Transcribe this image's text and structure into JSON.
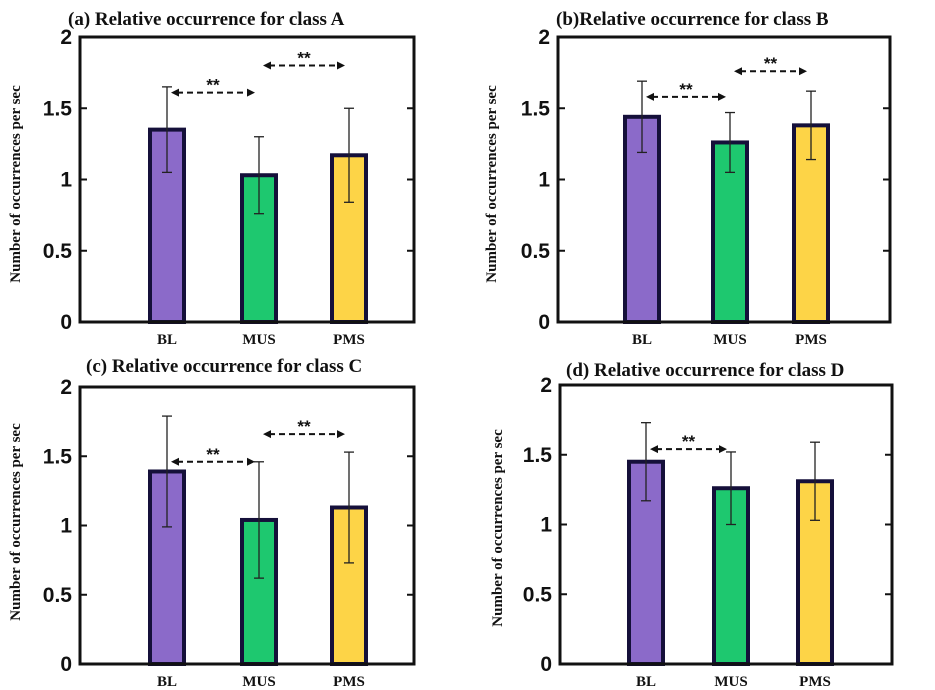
{
  "chart_data": [
    {
      "type": "bar",
      "title": "(a) Relative occurrence for  class A",
      "ylabel": "Number of occurrences per sec",
      "categories": [
        "BL",
        "MUS",
        "PMS"
      ],
      "values": [
        1.35,
        1.03,
        1.17
      ],
      "errors": [
        0.3,
        0.27,
        0.33
      ],
      "ylim": [
        0,
        2
      ],
      "yticks": [
        "0",
        "0.5",
        "1",
        "1.5",
        "2"
      ],
      "significance": [
        {
          "from": 0,
          "to": 1,
          "label": "**",
          "y": 1.61
        },
        {
          "from": 1,
          "to": 2,
          "label": "**",
          "y": 1.8
        }
      ]
    },
    {
      "type": "bar",
      "title": "(b)Relative occurrence for class B",
      "ylabel": "Number of occurrences per sec",
      "categories": [
        "BL",
        "MUS",
        "PMS"
      ],
      "values": [
        1.44,
        1.26,
        1.38
      ],
      "errors": [
        0.25,
        0.21,
        0.24
      ],
      "ylim": [
        0,
        2
      ],
      "yticks": [
        "0",
        "0.5",
        "1",
        "1.5",
        "2"
      ],
      "significance": [
        {
          "from": 0,
          "to": 1,
          "label": "**",
          "y": 1.58
        },
        {
          "from": 1,
          "to": 2,
          "label": "**",
          "y": 1.76
        }
      ]
    },
    {
      "type": "bar",
      "title": "(c)  Relative occurrence for class C",
      "ylabel": "Number of occurrences per sec",
      "categories": [
        "BL",
        "MUS",
        "PMS"
      ],
      "values": [
        1.39,
        1.04,
        1.13
      ],
      "errors": [
        0.4,
        0.42,
        0.4
      ],
      "ylim": [
        0,
        2
      ],
      "yticks": [
        "0",
        "0.5",
        "1",
        "1.5",
        "2"
      ],
      "significance": [
        {
          "from": 0,
          "to": 1,
          "label": "**",
          "y": 1.46
        },
        {
          "from": 1,
          "to": 2,
          "label": "**",
          "y": 1.66
        }
      ]
    },
    {
      "type": "bar",
      "title": "(d) Relative occurrence for  class D",
      "ylabel": "Number of occurrences per sec",
      "categories": [
        "BL",
        "MUS",
        "PMS"
      ],
      "values": [
        1.45,
        1.26,
        1.31
      ],
      "errors": [
        0.28,
        0.26,
        0.28
      ],
      "ylim": [
        0,
        2
      ],
      "yticks": [
        "0",
        "0.5",
        "1",
        "1.5",
        "2"
      ],
      "significance": [
        {
          "from": 0,
          "to": 1,
          "label": "**",
          "y": 1.54
        }
      ]
    }
  ],
  "colors": {
    "BL": "#8b6ac9",
    "MUS": "#1ec86f",
    "PMS": "#fdd447",
    "bar_edge": "#15103a",
    "axis": "#111111"
  }
}
